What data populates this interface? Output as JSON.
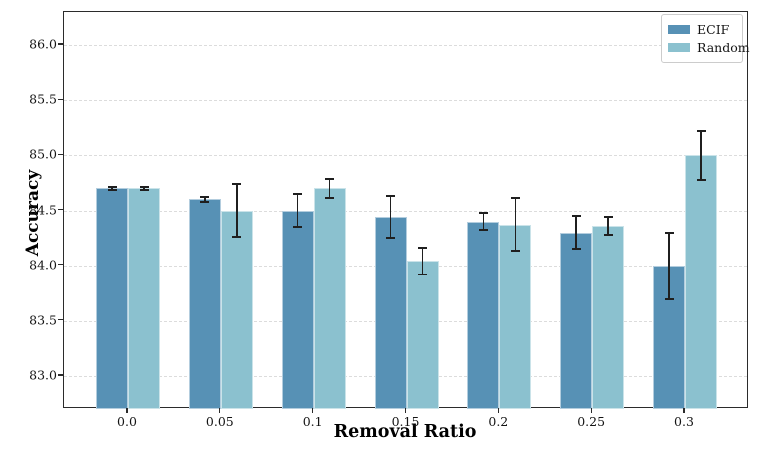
{
  "chart_data": {
    "type": "bar",
    "title": "",
    "xlabel": "Removal Ratio",
    "ylabel": "Accuracy",
    "categories": [
      "0.0",
      "0.05",
      "0.1",
      "0.15",
      "0.2",
      "0.25",
      "0.3"
    ],
    "series": [
      {
        "name": "ECIF",
        "color": "#5791b5",
        "values": [
          84.7,
          84.6,
          84.5,
          84.44,
          84.4,
          84.3,
          84.0
        ],
        "errors": [
          0.01,
          0.02,
          0.15,
          0.19,
          0.08,
          0.15,
          0.3
        ]
      },
      {
        "name": "Random",
        "color": "#8bc1cf",
        "values": [
          84.7,
          84.5,
          84.7,
          84.04,
          84.37,
          84.36,
          85.0
        ],
        "errors": [
          0.01,
          0.24,
          0.09,
          0.12,
          0.24,
          0.08,
          0.22
        ]
      }
    ],
    "ylim": [
      82.7,
      86.3
    ],
    "yticks": [
      83.0,
      83.5,
      84.0,
      84.5,
      85.0,
      85.5,
      86.0
    ],
    "ytick_labels": [
      "83.0",
      "83.5",
      "84.0",
      "84.5",
      "85.0",
      "85.5",
      "86.0"
    ],
    "grid": "horizontal-dashed",
    "legend_position": "upper-right",
    "error_bar_color": "#1f1f1f",
    "axis_color": "#2b2b2b",
    "grid_color": "#dcdcdc"
  }
}
